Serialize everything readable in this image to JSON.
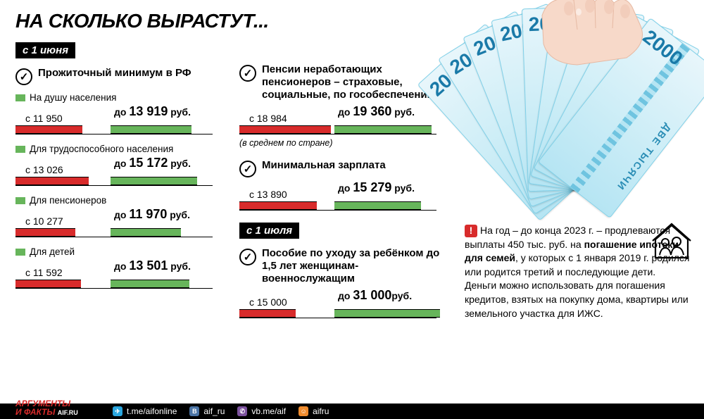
{
  "header": {
    "title": "НА СКОЛЬКО ВЫРАСТУТ..."
  },
  "colors": {
    "red": "#d82b2b",
    "green": "#67b55b",
    "black": "#000000",
    "bill_blue": "#b6e5f3",
    "tg": "#2aa6de",
    "vk": "#4b74a5",
    "vb": "#7d539f",
    "ok": "#f08c2e"
  },
  "dates": {
    "june": "с 1 июня",
    "july": "с 1 июля"
  },
  "col1": {
    "title": "Прожиточный минимум в РФ",
    "items": [
      {
        "label": "На душу населения",
        "from": "11 950",
        "to_prefix": "до ",
        "to_main": "13 919",
        "to_suffix": " руб.",
        "w_from": 95,
        "w_to": 115
      },
      {
        "label": "Для трудоспособного населения",
        "from": "13 026",
        "to_prefix": "до ",
        "to_main": "15 172",
        "to_suffix": " руб.",
        "w_from": 104,
        "w_to": 123
      },
      {
        "label": "Для пенсионеров",
        "from": "10 277",
        "to_prefix": "до ",
        "to_main": "11 970",
        "to_suffix": " руб.",
        "w_from": 85,
        "w_to": 100
      },
      {
        "label": "Для детей",
        "from": "11 592",
        "to_prefix": "до ",
        "to_main": "13 501",
        "to_suffix": " руб.",
        "w_from": 93,
        "w_to": 112
      }
    ]
  },
  "col2": {
    "block1": {
      "title": "Пенсии неработающих пенсионеров – страховые, социальные, по гособеспечению",
      "from": "18 984",
      "to_prefix": "до ",
      "to_main": "19 360",
      "to_suffix": " руб.",
      "w_from": 130,
      "w_to": 138,
      "note": "(в среднем по стране)"
    },
    "block2": {
      "title": "Минимальная зарплата",
      "from": "13 890",
      "to_prefix": "до ",
      "to_main": "15 279",
      "to_suffix": " руб.",
      "w_from": 110,
      "w_to": 123
    },
    "block3": {
      "title": "Пособие по уходу за ребёнком до 1,5 лет женщинам-военнослужащим",
      "from": "15 000",
      "to_prefix": "до ",
      "to_main": "31 000",
      "to_suffix": "руб.",
      "w_from": 80,
      "w_to": 150
    }
  },
  "money": {
    "denom": "2000",
    "txt": "ДВЕ ТЫСЯЧИ"
  },
  "right": {
    "pre": "На год – до конца 2023 г. – продлеваются выплаты 450 тыс. руб. на ",
    "bold": "погашение ипотеки для семей",
    "post": ", у которых с 1 января 2019 г. родился или родится третий и последующие дети. Деньги можно использовать для погашения кредитов, взятых на покупку дома, квартиры или земельного участка для ИЖС."
  },
  "footer": {
    "brand1": "АРГУМЕНТЫ",
    "brand2": "И ФАКТЫ",
    "brand_site": "AIF.RU",
    "tg": "t.me/aifonline",
    "vk": "aif_ru",
    "vb": "vb.me/aif",
    "ok": "aifru"
  },
  "label_prefix": "с "
}
